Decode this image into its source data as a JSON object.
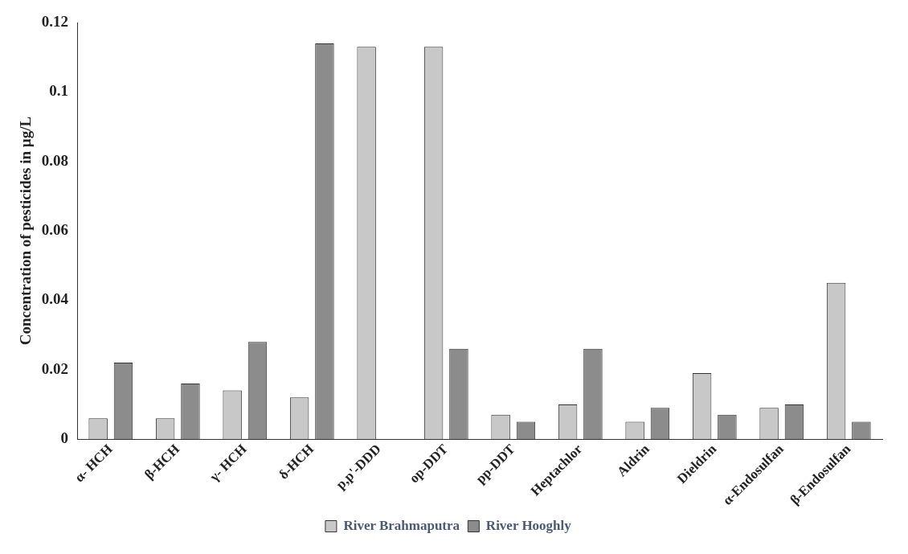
{
  "chart_data": {
    "type": "bar",
    "ylabel": "Concentration of pesticides in µg/L",
    "categories": [
      "α- HCH",
      "β-HCH",
      "γ- HCH",
      "δ-HCH",
      "p,p'-DDD",
      "op-DDT",
      "pp-DDT",
      "Heptachlor",
      "Aldrin",
      "Dieldrin",
      "α-Endosulfan",
      "β-Endosulfan"
    ],
    "series": [
      {
        "name": "River Brahmaputra",
        "color": "#c8c8c8",
        "values": [
          0.006,
          0.006,
          0.014,
          0.012,
          0.113,
          0.113,
          0.007,
          0.01,
          0.005,
          0.019,
          0.009,
          0.045
        ]
      },
      {
        "name": "River Hooghly",
        "color": "#8c8c8c",
        "values": [
          0.022,
          0.016,
          0.028,
          0.114,
          null,
          0.026,
          0.005,
          0.026,
          0.009,
          0.007,
          0.01,
          0.005
        ]
      }
    ],
    "ylim": [
      0,
      0.12
    ],
    "yticks": [
      0,
      0.02,
      0.04,
      0.06,
      0.08,
      0.1,
      0.12
    ],
    "grid": false,
    "legend": "bottom"
  }
}
